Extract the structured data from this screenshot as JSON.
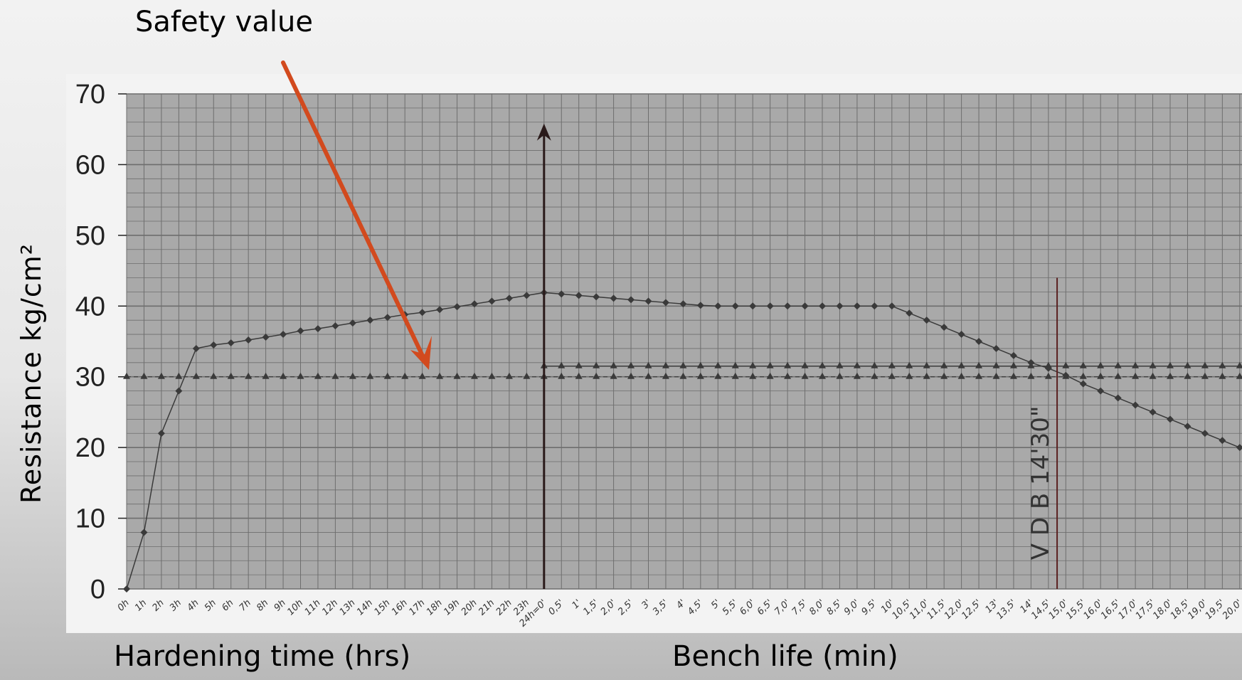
{
  "annotation": "Safety value",
  "annotation_handwritten": "V D B 14'30\"",
  "chart_data": {
    "type": "line",
    "ylabel": "Resistance kg/cm²",
    "xlabel_left": "Hardening time (hrs)",
    "xlabel_right": "Bench life (min)",
    "ylim": [
      0,
      70
    ],
    "yticks": [
      0,
      10,
      20,
      30,
      40,
      50,
      60,
      70
    ],
    "grid": true,
    "x_ticks": [
      "0h",
      "1h",
      "2h",
      "3h",
      "4h",
      "5h",
      "6h",
      "7h",
      "8h",
      "9h",
      "10h",
      "11h",
      "12h",
      "13h",
      "14h",
      "15h",
      "16h",
      "17h",
      "18h",
      "19h",
      "20h",
      "21h",
      "22h",
      "23h",
      "24h=0'",
      "0,5'",
      "1'",
      "1,5'",
      "2,0'",
      "2,5'",
      "3'",
      "3,5'",
      "4'",
      "4,5'",
      "5'",
      "5,5'",
      "6,0'",
      "6,5'",
      "7,0'",
      "7,5'",
      "8,0'",
      "8,5'",
      "9,0'",
      "9,5'",
      "10'",
      "10,5'",
      "11,0'",
      "11,5'",
      "12,0'",
      "12,5'",
      "13'",
      "13,5'",
      "14'",
      "14,5'",
      "15,0'",
      "15,5'",
      "16,0'",
      "16,5'",
      "17,0'",
      "17,5'",
      "18,0'",
      "18,5'",
      "19,0'",
      "19,5'",
      "20,0'"
    ],
    "series": [
      {
        "values": [
          0,
          8,
          22,
          28,
          34,
          34.5,
          34.8,
          35.2,
          35.6,
          36,
          36.5,
          36.8,
          37.2,
          37.6,
          38,
          38.4,
          38.8,
          39.1,
          39.5,
          39.9,
          40.3,
          40.7,
          41.1,
          41.5,
          41.9,
          41.7,
          41.5,
          41.3,
          41.1,
          40.9,
          40.7,
          40.5,
          40.3,
          40.1,
          40,
          40,
          40,
          40,
          40,
          40,
          40,
          40,
          40,
          40,
          40,
          39,
          38,
          37,
          36,
          35,
          34,
          33,
          32,
          31.2,
          30.2,
          29,
          28,
          27,
          26,
          25,
          24,
          23,
          22,
          21,
          20
        ]
      },
      {
        "values": [
          null,
          null,
          null,
          null,
          null,
          null,
          null,
          null,
          null,
          null,
          null,
          null,
          null,
          null,
          null,
          null,
          null,
          null,
          null,
          null,
          null,
          null,
          null,
          null,
          31.5,
          31.5,
          31.5,
          31.5,
          31.5,
          31.5,
          31.5,
          31.5,
          31.5,
          31.5,
          31.5,
          31.5,
          31.5,
          31.5,
          31.5,
          31.5,
          31.5,
          31.5,
          31.5,
          31.5,
          31.5,
          31.5,
          31.5,
          31.5,
          31.5,
          31.5,
          31.5,
          31.5,
          31.5,
          31.5,
          31.5,
          31.5,
          31.5,
          31.5,
          31.5,
          31.5,
          31.5,
          31.5,
          31.5,
          31.5,
          31.5
        ]
      },
      {
        "values": [
          30,
          30,
          30,
          30,
          30,
          30,
          30,
          30,
          30,
          30,
          30,
          30,
          30,
          30,
          30,
          30,
          30,
          30,
          30,
          30,
          30,
          30,
          30,
          30,
          30,
          30,
          30,
          30,
          30,
          30,
          30,
          30,
          30,
          30,
          30,
          30,
          30,
          30,
          30,
          30,
          30,
          30,
          30,
          30,
          30,
          30,
          30,
          30,
          30,
          30,
          30,
          30,
          30,
          30,
          30,
          30,
          30,
          30,
          30,
          30,
          30,
          30,
          30,
          30,
          30
        ]
      }
    ],
    "vertical_markers": [
      {
        "at_index": 24,
        "value_top": 65
      },
      {
        "at_index": 53.5,
        "value_top": 44
      }
    ]
  },
  "colors": {
    "plot_bg": "#a9a9a9",
    "grid": "#6e6e6e",
    "curve": "#3a3a3a",
    "marker_line": "#5a2020",
    "arrow": "#d24a1e",
    "paper": "#f3f3f3"
  }
}
